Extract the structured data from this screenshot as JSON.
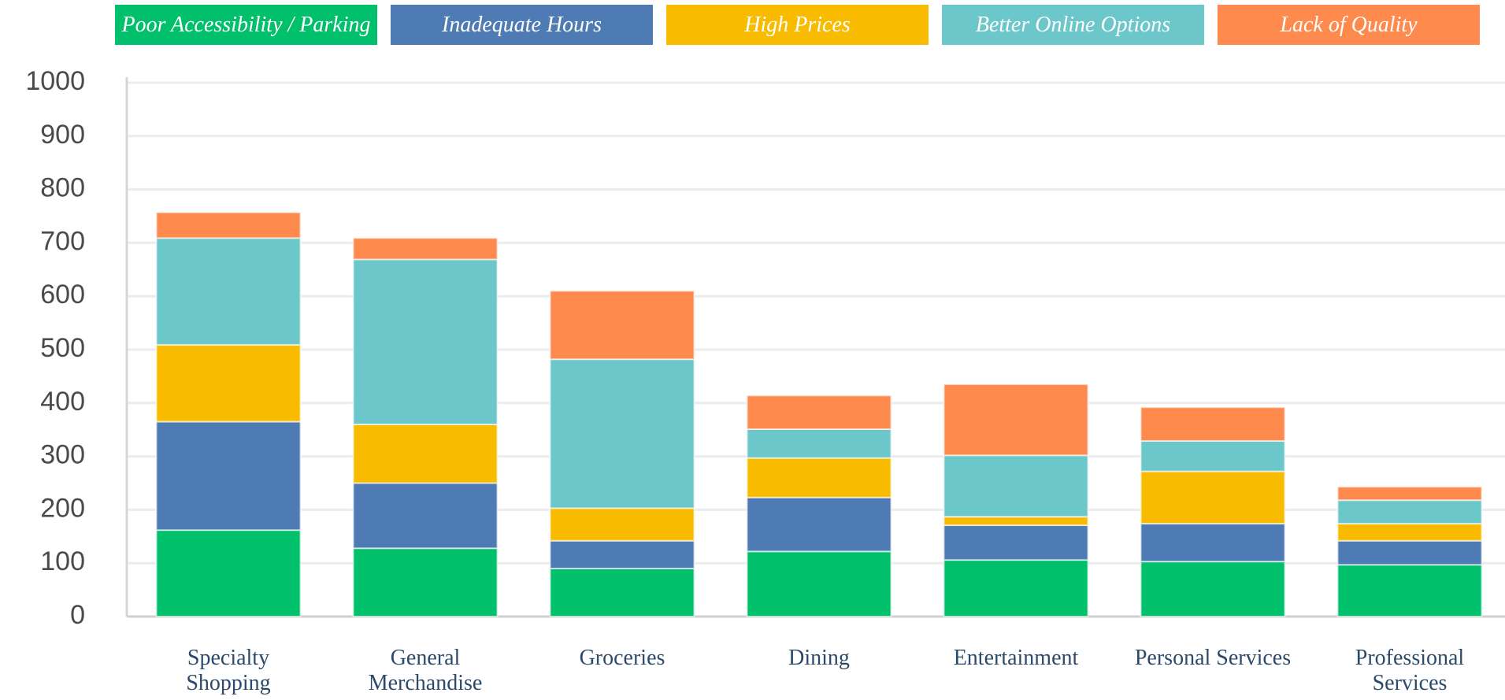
{
  "chart_data": {
    "type": "stacked_bar",
    "categories": [
      "Specialty Shopping",
      "General Merchandise",
      "Groceries",
      "Dining",
      "Entertainment",
      "Personal Services",
      "Professional Services"
    ],
    "series": [
      {
        "name": "Poor Accessibility / Parking",
        "color": "#00c06b",
        "values": [
          162,
          128,
          90,
          122,
          106,
          103,
          97
        ]
      },
      {
        "name": "Inadequate Hours",
        "color": "#4f7bb5",
        "values": [
          203,
          122,
          52,
          101,
          65,
          71,
          45
        ]
      },
      {
        "name": "High Prices",
        "color": "#f8bb00",
        "values": [
          144,
          110,
          61,
          74,
          16,
          98,
          32
        ]
      },
      {
        "name": "Better Online Options",
        "color": "#6cc7cb",
        "values": [
          200,
          309,
          279,
          54,
          115,
          57,
          44
        ]
      },
      {
        "name": "Lack of Quality",
        "color": "#ff8a4d",
        "values": [
          48,
          40,
          128,
          63,
          133,
          63,
          25
        ]
      }
    ],
    "ylim": [
      0,
      1000
    ],
    "yticks": [
      0,
      100,
      200,
      300,
      400,
      500,
      600,
      700,
      800,
      900,
      1000
    ],
    "grid": true,
    "legend": "top"
  }
}
